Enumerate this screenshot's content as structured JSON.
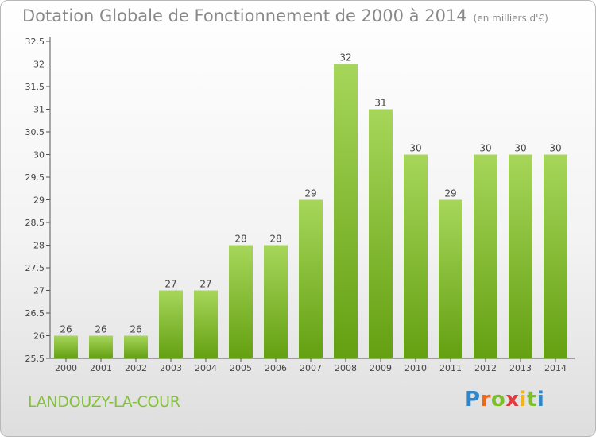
{
  "page": {
    "title": "Dotation Globale de Fonctionnement de 2000 à 2014",
    "units": "(en milliers d'€)",
    "commune": "LANDOUZY-LA-COUR",
    "logo": "Proxiti"
  },
  "colors": {
    "bar_light": "#a6d65a",
    "bar_dark": "#64a012",
    "text": "#8a8a8a",
    "commune": "#82c239",
    "logo": [
      "#2f86c8",
      "#ec6a1c",
      "#7cbf2a",
      "#e23b3b",
      "#f0b41c",
      "#7cbf2a",
      "#2f86c8"
    ]
  },
  "chart_data": {
    "type": "bar",
    "categories": [
      "2000",
      "2001",
      "2002",
      "2003",
      "2004",
      "2005",
      "2006",
      "2007",
      "2008",
      "2009",
      "2010",
      "2011",
      "2012",
      "2013",
      "2014"
    ],
    "values": [
      26,
      26,
      26,
      27,
      27,
      28,
      28,
      29,
      32,
      31,
      30,
      29,
      30,
      30,
      30
    ],
    "ylim": [
      25.5,
      32.5
    ],
    "yticks": [
      "25.5",
      "26",
      "26.5",
      "27",
      "27.5",
      "28",
      "28.5",
      "29",
      "29.5",
      "30",
      "30.5",
      "31",
      "31.5",
      "32",
      "32.5"
    ],
    "grid": false,
    "legend": "none"
  }
}
